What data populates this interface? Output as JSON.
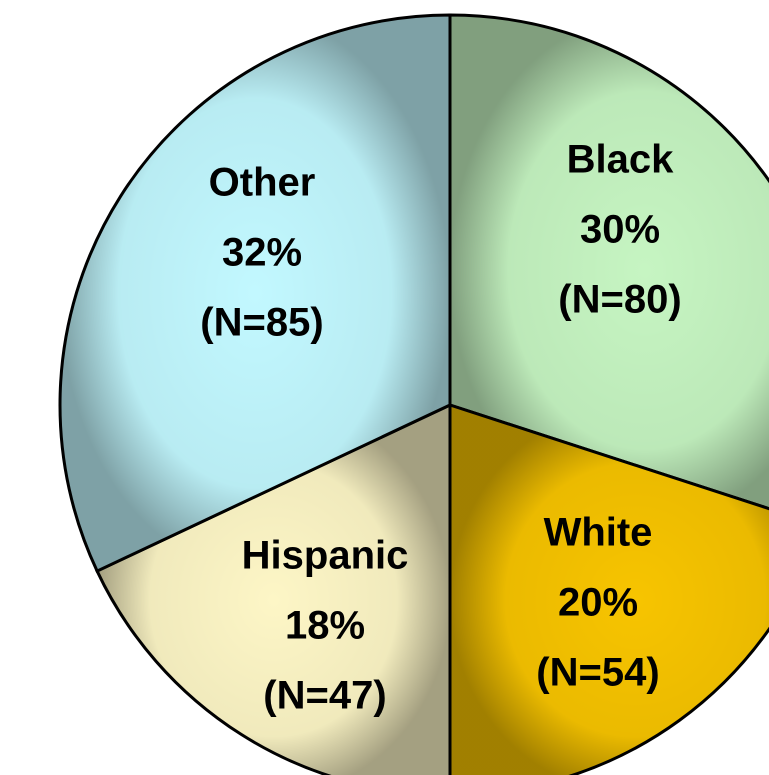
{
  "chart_data": {
    "type": "pie",
    "categories": [
      "Black",
      "White",
      "Hispanic",
      "Other"
    ],
    "values": [
      30,
      20,
      18,
      32
    ],
    "value_labels": [
      "30%",
      "20%",
      "18%",
      "32%"
    ],
    "counts": [
      80,
      54,
      47,
      85
    ],
    "count_labels": [
      "(N=80)",
      "(N=54)",
      "(N=47)",
      "(N=85)"
    ],
    "colors": [
      "#c6f5c2",
      "#f7c400",
      "#fdf6c6",
      "#c2f8ff"
    ]
  }
}
